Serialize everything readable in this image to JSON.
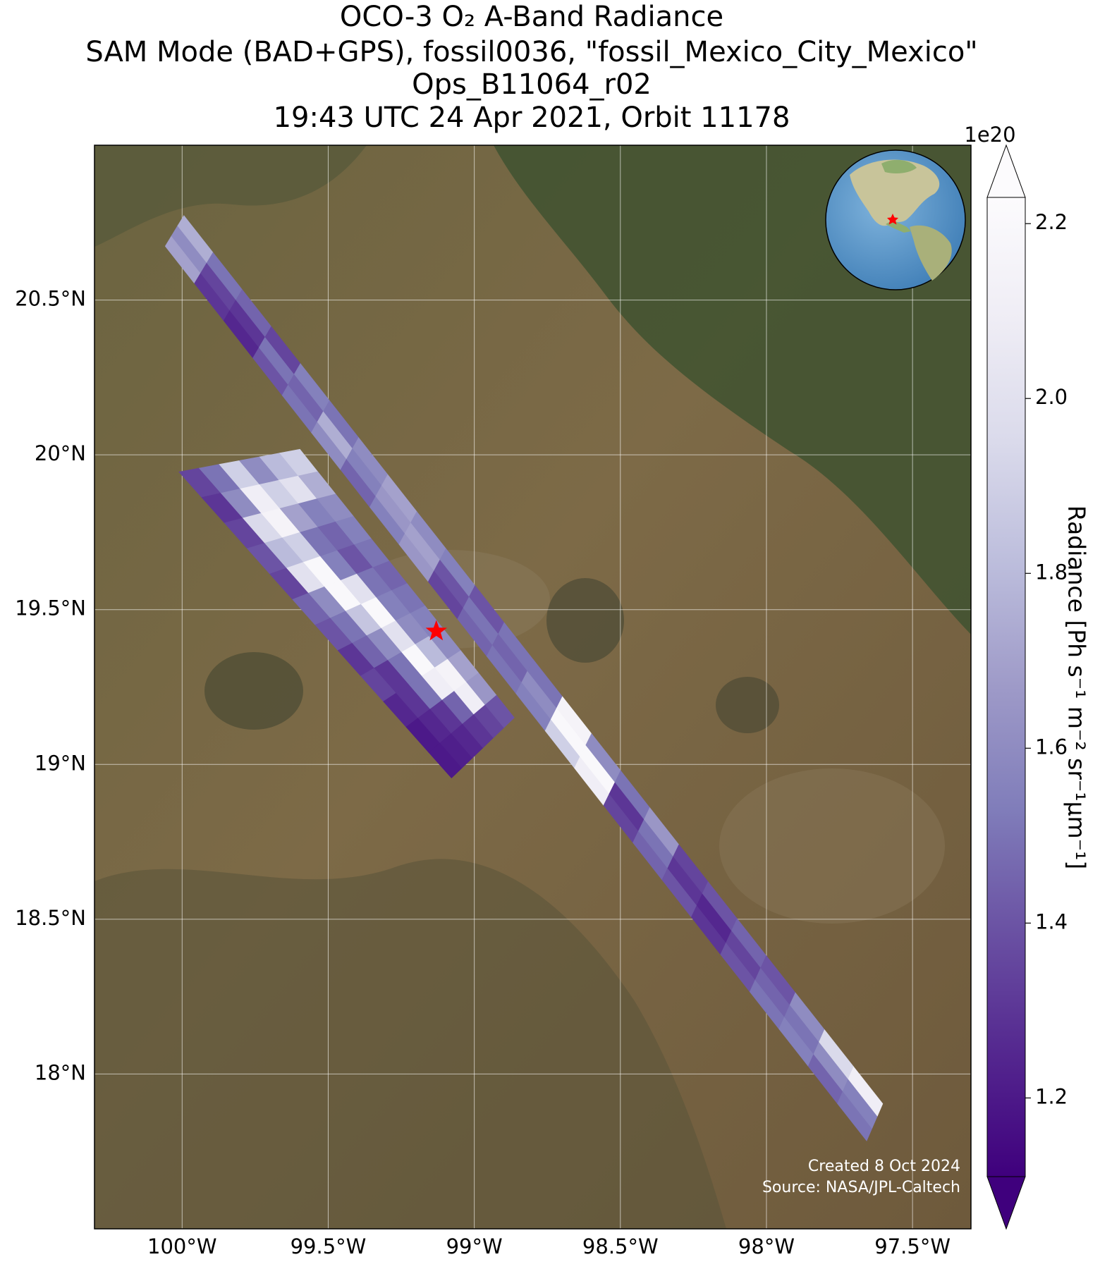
{
  "chart_data": {
    "type": "swath",
    "title": [
      "OCO-3 O₂ A-Band Radiance",
      "SAM Mode (BAD+GPS), fossil0036, \"fossil_Mexico_City_Mexico\"",
      "Ops_B11064_r02",
      "19:43 UTC 24 Apr 2021, Orbit 11178"
    ],
    "xlim": [
      -100.3,
      -97.3
    ],
    "ylim": [
      17.5,
      21.0
    ],
    "xticks": [
      {
        "value": -100,
        "label": "100°W"
      },
      {
        "value": -99.5,
        "label": "99.5°W"
      },
      {
        "value": -99,
        "label": "99°W"
      },
      {
        "value": -98.5,
        "label": "98.5°W"
      },
      {
        "value": -98,
        "label": "98°W"
      },
      {
        "value": -97.5,
        "label": "97.5°W"
      }
    ],
    "yticks": [
      {
        "value": 18,
        "label": "18°N"
      },
      {
        "value": 18.5,
        "label": "18.5°N"
      },
      {
        "value": 19,
        "label": "19°N"
      },
      {
        "value": 19.5,
        "label": "19.5°N"
      },
      {
        "value": 20,
        "label": "20°N"
      },
      {
        "value": 20.5,
        "label": "20.5°N"
      }
    ],
    "grid": true,
    "colorbar": {
      "label": "Radiance [Ph s⁻¹ m⁻² sr⁻¹μm⁻¹]",
      "offset": "1e20",
      "clim": [
        1.11,
        2.23
      ],
      "ticks": [
        1.2,
        1.4,
        1.6,
        1.8,
        {
          "value": 2,
          "label": "2.0"
        },
        2.2
      ],
      "colormap": [
        "#3f007d",
        "#54278f",
        "#6a51a3",
        "#807dba",
        "#9e9ac8",
        "#bcbddc",
        "#dadaeb",
        "#efedf5",
        "#fcfbfd"
      ],
      "extend": "both"
    },
    "swaths": [
      {
        "corners": [
          [
            -100.058,
            20.674
          ],
          [
            -99.994,
            20.773
          ],
          [
            -97.602,
            17.904
          ],
          [
            -97.657,
            17.784
          ]
        ],
        "values": [
          [
            1.7,
            1.6,
            1.75
          ],
          [
            1.3,
            1.35,
            1.5
          ],
          [
            1.25,
            1.3,
            1.45
          ],
          [
            1.4,
            1.5,
            1.35
          ],
          [
            1.5,
            1.45,
            1.55
          ],
          [
            1.6,
            1.75,
            1.5
          ],
          [
            1.45,
            1.55,
            1.6
          ],
          [
            1.55,
            1.65,
            1.7
          ],
          [
            1.65,
            1.7,
            1.6
          ],
          [
            1.35,
            1.4,
            1.55
          ],
          [
            1.45,
            1.5,
            1.4
          ],
          [
            1.5,
            1.45,
            1.5
          ],
          [
            1.55,
            1.6,
            1.5
          ],
          [
            1.9,
            2.2,
            2.15
          ],
          [
            2.1,
            2.2,
            1.6
          ],
          [
            1.35,
            1.3,
            1.5
          ],
          [
            1.45,
            1.5,
            1.65
          ],
          [
            1.4,
            1.3,
            1.35
          ],
          [
            1.3,
            1.25,
            1.4
          ],
          [
            1.4,
            1.35,
            1.45
          ],
          [
            1.5,
            1.45,
            1.4
          ],
          [
            1.55,
            1.5,
            1.6
          ],
          [
            1.45,
            1.6,
            1.95
          ],
          [
            1.5,
            1.55,
            2.1
          ]
        ]
      },
      {
        "corners": [
          [
            -100.011,
            19.945
          ],
          [
            -99.597,
            20.018
          ],
          [
            -98.863,
            19.151
          ],
          [
            -99.078,
            18.956
          ]
        ],
        "values": [
          [
            1.35,
            1.5,
            1.9,
            1.6,
            1.8,
            1.9
          ],
          [
            1.3,
            1.6,
            2.1,
            1.9,
            2.0,
            1.75
          ],
          [
            1.35,
            1.95,
            2.15,
            1.7,
            1.55,
            1.6
          ],
          [
            1.4,
            1.8,
            1.9,
            1.5,
            1.45,
            1.55
          ],
          [
            1.35,
            2.0,
            2.2,
            1.55,
            1.4,
            1.5
          ],
          [
            1.45,
            1.6,
            2.2,
            2.0,
            1.5,
            1.45
          ],
          [
            1.4,
            1.5,
            1.85,
            2.2,
            1.55,
            1.5
          ],
          [
            1.3,
            1.45,
            1.6,
            2.0,
            1.6,
            1.55
          ],
          [
            1.35,
            1.3,
            1.5,
            2.2,
            1.8,
            1.6
          ],
          [
            1.25,
            1.3,
            1.5,
            2.1,
            2.15,
            1.7
          ],
          [
            1.2,
            1.25,
            1.3,
            1.45,
            2.1,
            1.65
          ],
          [
            1.2,
            1.22,
            1.25,
            1.3,
            1.35,
            1.4
          ]
        ]
      }
    ],
    "marker": {
      "lon": -99.13,
      "lat": 19.43,
      "color": "#ff0000"
    },
    "annotations": [
      "Created 8 Oct 2024",
      "Source: NASA/JPL-Caltech"
    ]
  }
}
